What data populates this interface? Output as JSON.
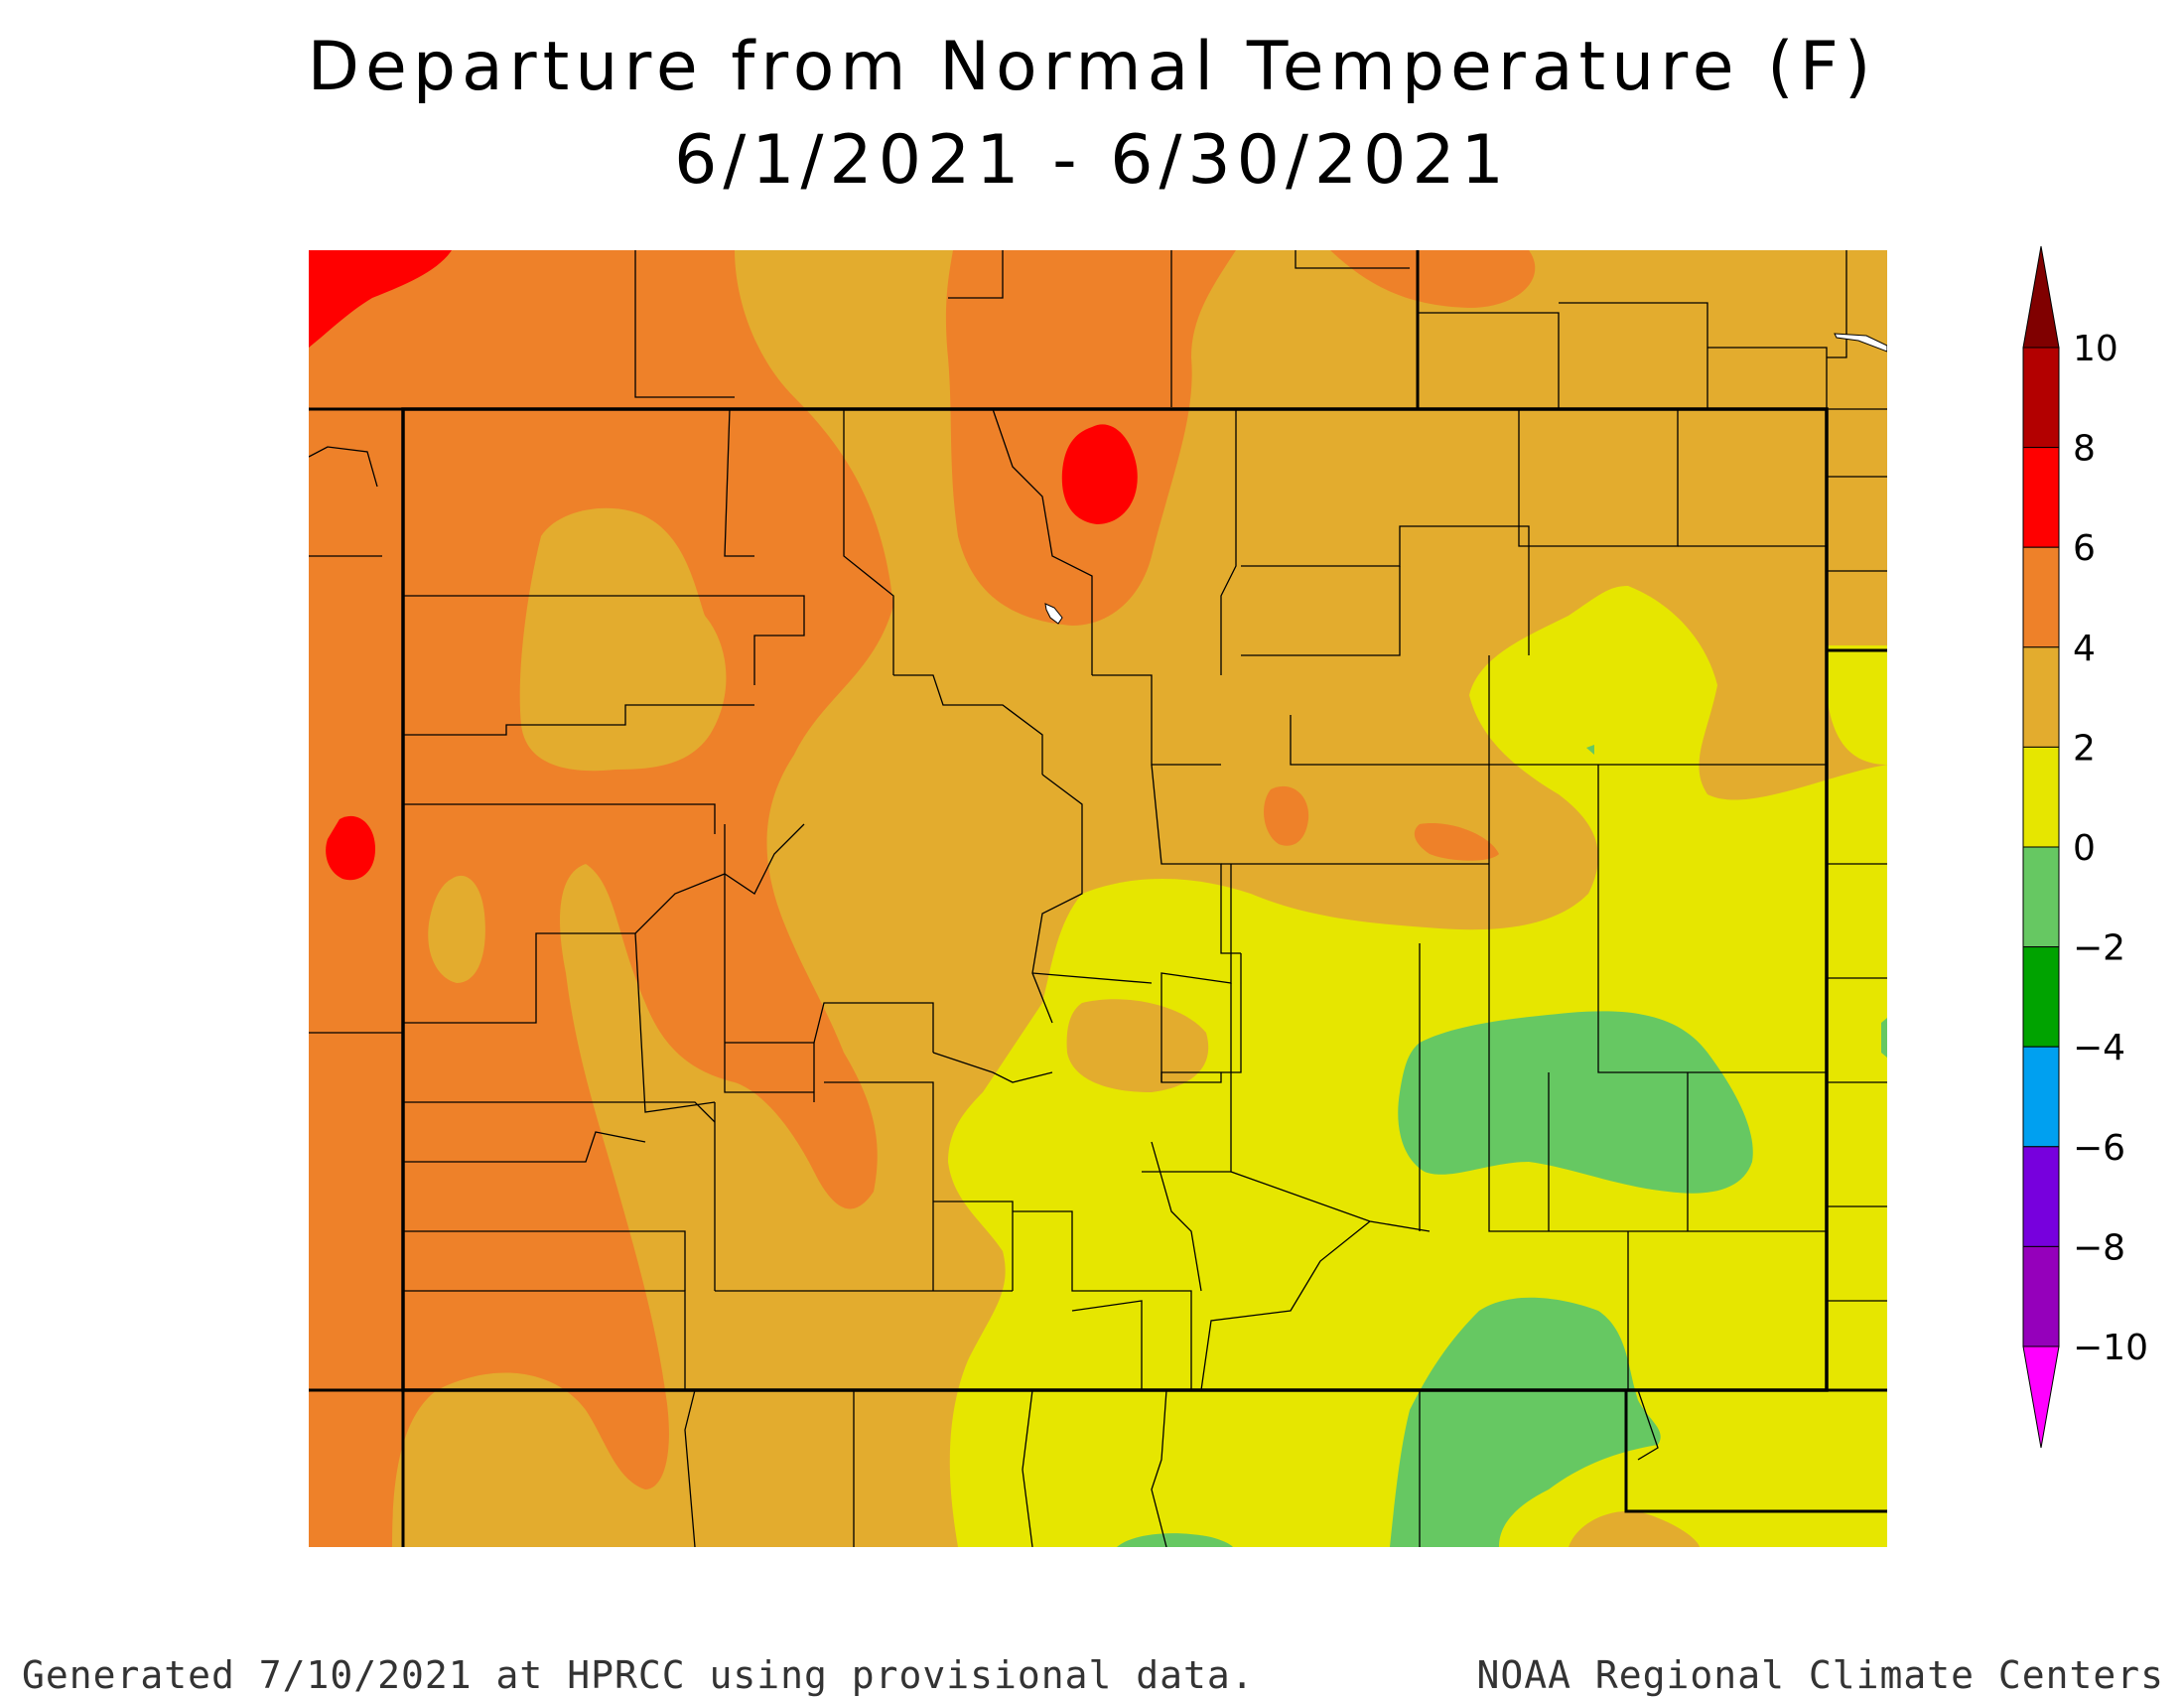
{
  "title_line1": "Departure from Normal Temperature (F)",
  "title_line2": "6/1/2021 - 6/30/2021",
  "footer_left": "Generated 7/10/2021 at HPRCC using provisional data.",
  "footer_right": "NOAA Regional Climate Centers",
  "legend": {
    "labels": [
      "10",
      "8",
      "6",
      "4",
      "2",
      "0",
      "−2",
      "−4",
      "−6",
      "−8",
      "−10"
    ],
    "bins": [
      {
        "range": "8 to 10",
        "color": "#b30000"
      },
      {
        "range": "6 to 8",
        "color": "#ff0000"
      },
      {
        "range": "4 to 6",
        "color": "#ee8129"
      },
      {
        "range": "2 to 4",
        "color": "#e3ac2e"
      },
      {
        "range": "0 to 2",
        "color": "#e6e600"
      },
      {
        "range": "-2 to 0",
        "color": "#66c862"
      },
      {
        "range": "-4 to -2",
        "color": "#00a300"
      },
      {
        "range": "-6 to -4",
        "color": "#00a0f0"
      },
      {
        "range": "-8 to -6",
        "color": "#7700dd"
      },
      {
        "range": "-10 to -8",
        "color": "#9500bb"
      }
    ],
    "above_max_color": "#800000",
    "below_min_color": "#ff00ff"
  }
}
